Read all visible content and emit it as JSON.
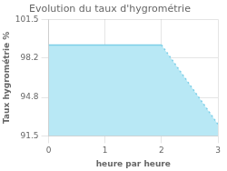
{
  "chart_data": {
    "type": "line",
    "title": "Evolution du taux d'hygrométrie",
    "xlabel": "heure par heure",
    "ylabel": "Taux hygrométrie %",
    "x": [
      0,
      2,
      3
    ],
    "series": [
      {
        "type": "area",
        "color": "#b8e8f5",
        "values": [
          99.3,
          99.3,
          92.5
        ]
      },
      {
        "type": "line",
        "color": "#7ecfe8",
        "line_style": "solid",
        "values": [
          99.3,
          99.3,
          null
        ]
      },
      {
        "type": "line",
        "color": "#7ecfe8",
        "line_style": "dotted",
        "values": [
          null,
          99.3,
          92.5
        ]
      }
    ],
    "xlim": [
      0,
      3
    ],
    "xticks": [
      0,
      1,
      2,
      3
    ],
    "ylim": [
      91.5,
      101.5
    ],
    "yticks": [
      91.5,
      94.8,
      98.2,
      101.5
    ],
    "grid": true
  }
}
